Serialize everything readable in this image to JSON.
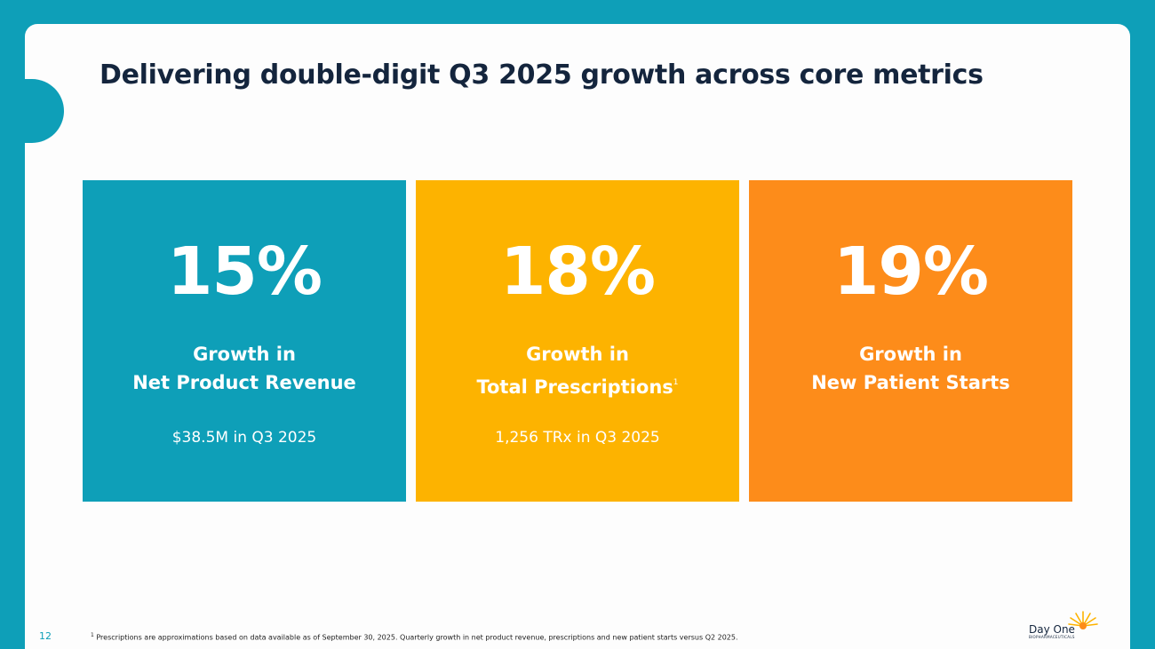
{
  "slide": {
    "title": "Delivering double-digit Q3 2025 growth across core metrics",
    "page_number": "12",
    "footnote_marker": "1",
    "footnote_text": "Prescriptions are approximations based on data available as of September 30, 2025.  Quarterly growth in net product revenue, prescriptions and new patient starts versus Q2 2025."
  },
  "cards": [
    {
      "value": "15%",
      "label_line1": "Growth in",
      "label_line2": "Net Product Revenue",
      "superscript": "",
      "detail": "$38.5M in Q3 2025",
      "color": "#0e9fb8"
    },
    {
      "value": "18%",
      "label_line1": "Growth in",
      "label_line2": "Total Prescriptions",
      "superscript": "1",
      "detail": "1,256 TRx in Q3 2025",
      "color": "#fdb300"
    },
    {
      "value": "19%",
      "label_line1": "Growth in",
      "label_line2": "New Patient Starts",
      "superscript": "",
      "detail": "",
      "color": "#fd8c1a"
    }
  ],
  "logo": {
    "name": "Day One",
    "subtitle": "BIOPHARMACEUTICALS",
    "icon": "sun-icon",
    "sun_color": "#fdb300"
  }
}
